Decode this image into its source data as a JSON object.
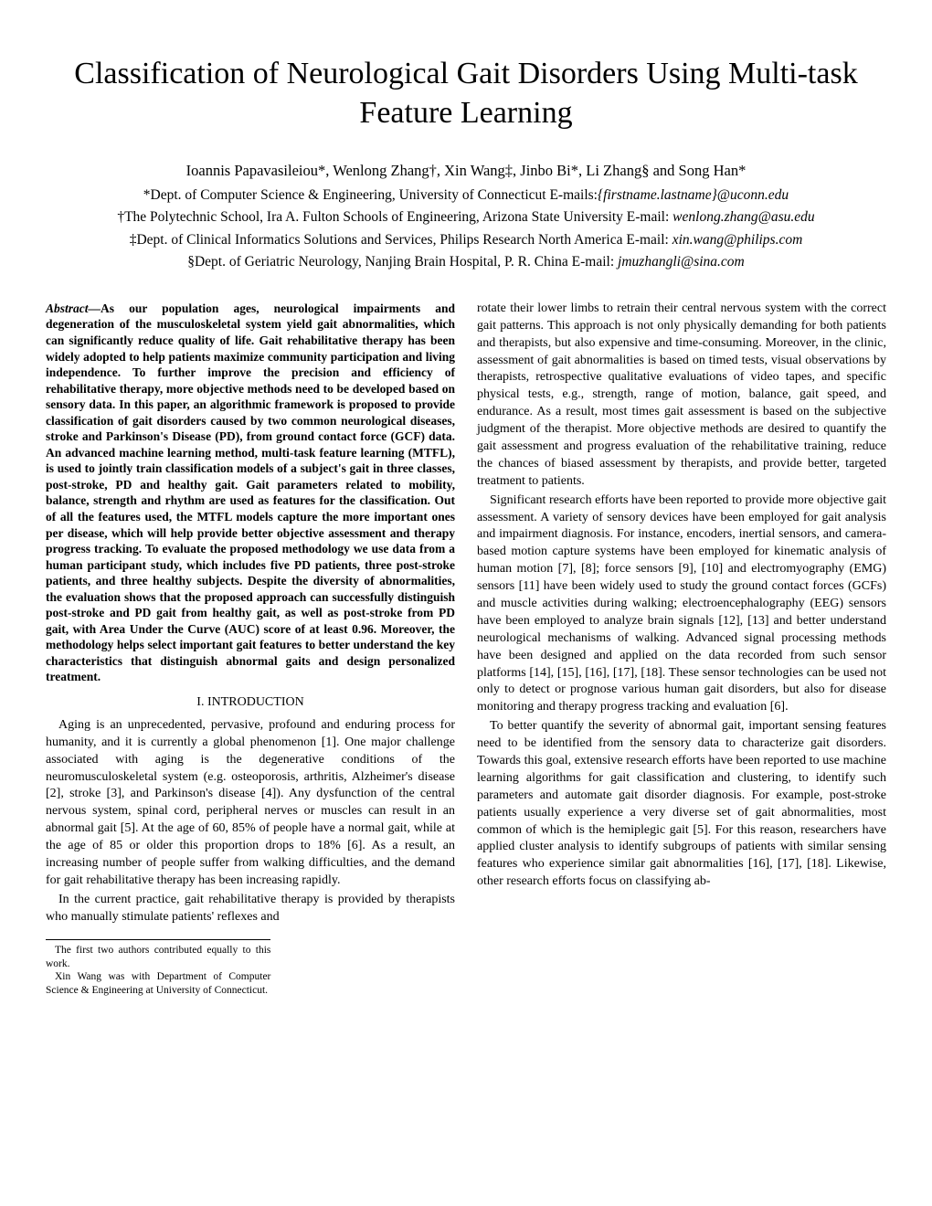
{
  "title": "Classification of Neurological Gait Disorders Using Multi-task Feature Learning",
  "authors_line": "Ioannis Papavasileiou*, Wenlong Zhang†, Xin Wang‡, Jinbo Bi*, Li Zhang§ and Song Han*",
  "affiliations": {
    "a1_prefix": "*Dept. of Computer Science & Engineering, University of Connecticut E-mails:",
    "a1_email": "{firstname.lastname}@uconn.edu",
    "a2_prefix": "†The Polytechnic School, Ira A. Fulton Schools of Engineering, Arizona State University   E-mail: ",
    "a2_email": "wenlong.zhang@asu.edu",
    "a3_prefix": "‡Dept. of Clinical Informatics Solutions and Services, Philips Research North America   E-mail: ",
    "a3_email": "xin.wang@philips.com",
    "a4_prefix": "§Dept. of Geriatric Neurology, Nanjing Brain Hospital, P. R. China   E-mail: ",
    "a4_email": "jmuzhangli@sina.com"
  },
  "abstract_label": "Abstract—",
  "abstract_text": "As our population ages, neurological impairments and degeneration of the musculoskeletal system yield gait abnormalities, which can significantly reduce quality of life. Gait rehabilitative therapy has been widely adopted to help patients maximize community participation and living independence. To further improve the precision and efficiency of rehabilitative therapy, more objective methods need to be developed based on sensory data. In this paper, an algorithmic framework is proposed to provide classification of gait disorders caused by two common neurological diseases, stroke and Parkinson's Disease (PD), from ground contact force (GCF) data. An advanced machine learning method, multi-task feature learning (MTFL), is used to jointly train classification models of a subject's gait in three classes, post-stroke, PD and healthy gait. Gait parameters related to mobility, balance, strength and rhythm are used as features for the classification. Out of all the features used, the MTFL models capture the more important ones per disease, which will help provide better objective assessment and therapy progress tracking. To evaluate the proposed methodology we use data from a human participant study, which includes five PD patients, three post-stroke patients, and three healthy subjects. Despite the diversity of abnormalities, the evaluation shows that the proposed approach can successfully distinguish post-stroke and PD gait from healthy gait, as well as post-stroke from PD gait, with Area Under the Curve (AUC) score of at least 0.96. Moreover, the methodology helps select important gait features to better understand the key characteristics that distinguish abnormal gaits and design personalized treatment.",
  "section1_heading": "I. INTRODUCTION",
  "col1_p1": "Aging is an unprecedented, pervasive, profound and enduring process for humanity, and it is currently a global phenomenon [1]. One major challenge associated with aging is the degenerative conditions of the neuromusculoskeletal system (e.g. osteoporosis, arthritis, Alzheimer's disease [2], stroke [3], and Parkinson's disease [4]). Any dysfunction of the central nervous system, spinal cord, peripheral nerves or muscles can result in an abnormal gait [5]. At the age of 60, 85% of people have a normal gait, while at the age of 85 or older this proportion drops to 18% [6]. As a result, an increasing number of people suffer from walking difficulties, and the demand for gait rehabilitative therapy has been increasing rapidly.",
  "col1_p2": "In the current practice, gait rehabilitative therapy is provided by therapists who manually stimulate patients' reflexes and",
  "footnote1": "The first two authors contributed equally to this work.",
  "footnote2": "Xin Wang was with Department of Computer Science & Engineering at University of Connecticut.",
  "col2_p1": "rotate their lower limbs to retrain their central nervous system with the correct gait patterns. This approach is not only physically demanding for both patients and therapists, but also expensive and time-consuming. Moreover, in the clinic, assessment of gait abnormalities is based on timed tests, visual observations by therapists, retrospective qualitative evaluations of video tapes, and specific physical tests, e.g., strength, range of motion, balance, gait speed, and endurance. As a result, most times gait assessment is based on the subjective judgment of the therapist. More objective methods are desired to quantify the gait assessment and progress evaluation of the rehabilitative training, reduce the chances of biased assessment by therapists, and provide better, targeted treatment to patients.",
  "col2_p2": "Significant research efforts have been reported to provide more objective gait assessment. A variety of sensory devices have been employed for gait analysis and impairment diagnosis. For instance, encoders, inertial sensors, and camera-based motion capture systems have been employed for kinematic analysis of human motion [7], [8]; force sensors [9], [10] and electromyography (EMG) sensors [11] have been widely used to study the ground contact forces (GCFs) and muscle activities during walking; electroencephalography (EEG) sensors have been employed to analyze brain signals [12], [13] and better understand neurological mechanisms of walking. Advanced signal processing methods have been designed and applied on the data recorded from such sensor platforms [14], [15], [16], [17], [18]. These sensor technologies can be used not only to detect or prognose various human gait disorders, but also for disease monitoring and therapy progress tracking and evaluation [6].",
  "col2_p3": "To better quantify the severity of abnormal gait, important sensing features need to be identified from the sensory data to characterize gait disorders. Towards this goal, extensive research efforts have been reported to use machine learning algorithms for gait classification and clustering, to identify such parameters and automate gait disorder diagnosis. For example, post-stroke patients usually experience a very diverse set of gait abnormalities, most common of which is the hemiplegic gait [5]. For this reason, researchers have applied cluster analysis to identify subgroups of patients with similar sensing features who experience similar gait abnormalities [16], [17], [18]. Likewise, other research efforts focus on classifying ab-"
}
